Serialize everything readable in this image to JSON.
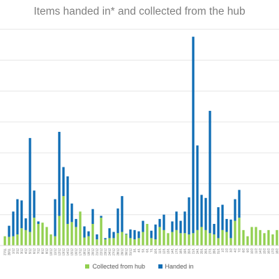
{
  "chart_data": {
    "type": "bar",
    "stacked": true,
    "title": "Items handed in* and collected from the hub",
    "xlabel": "",
    "ylabel": "",
    "ylim": [
      0,
      350
    ],
    "grid": true,
    "legend_position": "bottom",
    "categories": [
      "27/11",
      "28/11",
      "1/12",
      "2/12",
      "3/12",
      "4/12",
      "5/12",
      "6/12",
      "7/12",
      "8/12",
      "9/12",
      "10/12",
      "11/12",
      "12/12",
      "13/12",
      "14/12",
      "15/12",
      "16/12",
      "17/12",
      "18/12",
      "19/12",
      "20/12",
      "21/12",
      "22/12",
      "23/12",
      "24/12",
      "27/12",
      "28/12",
      "29/12",
      "30/12",
      "31/12",
      "3/1",
      "4/1",
      "5/1",
      "6/1",
      "7/1",
      "10/1",
      "11/1",
      "12/1",
      "13/1",
      "14/1",
      "17/1",
      "18/1",
      "19/1",
      "20/1",
      "21/1",
      "24/1",
      "25/1",
      "26/1",
      "27/1",
      "28/1",
      "31/1",
      "1/2",
      "2/2",
      "3/2",
      "4/2",
      "7/2",
      "8/2",
      "9/2",
      "10/2",
      "11/2",
      "14/2",
      "15/2",
      "16/2",
      "17/2",
      "18/2"
    ],
    "series": [
      {
        "name": "Collected from hub",
        "color": "#92d050",
        "values": [
          15,
          14,
          15,
          18,
          28,
          25,
          22,
          45,
          35,
          37,
          30,
          18,
          15,
          48,
          80,
          35,
          38,
          30,
          55,
          13,
          15,
          35,
          10,
          45,
          10,
          12,
          12,
          20,
          22,
          18,
          12,
          10,
          12,
          22,
          35,
          12,
          10,
          30,
          25,
          20,
          22,
          25,
          20,
          20,
          18,
          20,
          25,
          30,
          25,
          20,
          18,
          12,
          25,
          22,
          12,
          40,
          45,
          25,
          15,
          30,
          30,
          25,
          20,
          25,
          18,
          25
        ]
      },
      {
        "name": "Handed in",
        "color": "#0f6db5",
        "values": [
          0,
          18,
          40,
          57,
          45,
          19,
          152,
          44,
          4,
          0,
          0,
          0,
          60,
          136,
          47,
          77,
          30,
          13,
          0,
          18,
          8,
          24,
          8,
          3,
          2,
          16,
          10,
          40,
          58,
          1,
          14,
          15,
          11,
          18,
          0,
          12,
          24,
          13,
          25,
          0,
          17,
          30,
          20,
          35,
          60,
          318,
          137,
          52,
          52,
          198,
          17,
          50,
          41,
          21,
          30,
          35,
          45,
          0,
          0,
          0,
          0,
          0,
          0,
          0,
          0,
          0
        ]
      }
    ]
  }
}
